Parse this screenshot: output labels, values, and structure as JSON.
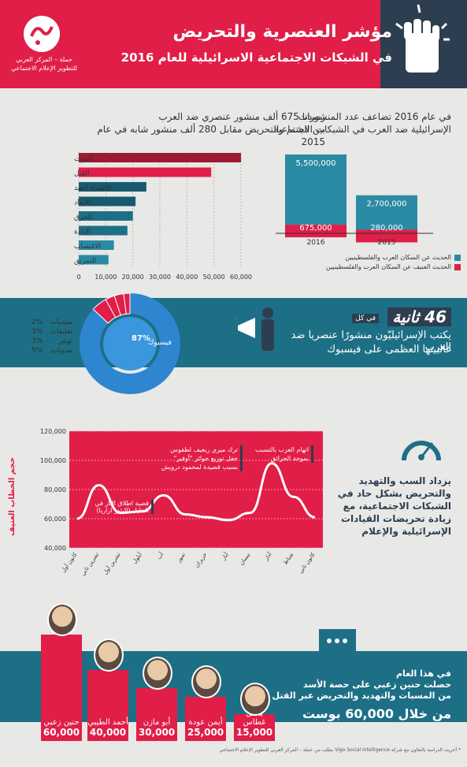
{
  "header": {
    "title": "مؤشر العنصرية والتحريض",
    "subtitle": "في الشبكات الاجتماعية الاسرائيلية للعام 2016",
    "logo_text": "حملة – المركز العربي\nللتطوير الإعلام الاجتماعي",
    "brand_color": "#e01e48",
    "dark_color": "#2c3e50",
    "teal_color": "#1d6f86"
  },
  "section1": {
    "right_text_1": "في عام 2016 تضاعف عدد المنشورات",
    "right_text_2": "الإسرائيلية ضد العرب في الشبكات الاجتماعية",
    "left_text_1": "رصدنا 675 ألف منشور عنصري ضد العرب",
    "left_text_2": "بين الشتم والتحريض مقابل 280 ألف منشور شابه في عام 2015",
    "legend_1": "الحديث عن السكان العرب والفلسطينيين",
    "legend_2": "الحديث العنيف عن السكان العرب والفلسطينيين"
  },
  "section2": {
    "prefix": "في كل",
    "seconds": "46 ثانية",
    "line1": "يكتب الإسرائيليّون منشورًا عنصريا ضد العرب",
    "line2": "غالبيتها العظمى على فيسبوك",
    "facebook_label": "فيسبوك",
    "facebook_pct": "87%",
    "platforms": [
      {
        "pct": "2%",
        "name": "منتديات"
      },
      {
        "pct": "3%",
        "name": "تعليقات"
      },
      {
        "pct": "3%",
        "name": "تويتر"
      },
      {
        "pct": "5%",
        "name": "مدونات"
      }
    ]
  },
  "section3": {
    "yaxis_title": "حجم الخطاب العنيف",
    "ann1": "قضية اطلاق النار في الخليل (اليئور ازاريا)",
    "ann2_1": "ترك ميري ريغيف لطقوس",
    "ann2_2": "حفل توزيع جوائز \"أوفير\"",
    "ann2_3": "بسبب قصيدة لمحمود درويش",
    "ann3_1": "اتهام العرب بالتسبب",
    "ann3_2": "بموجة الحرائق",
    "right_text": "يزداد السب والتهديد والتحريض بشكل حاد في الشبكات الاجتماعية، مع زيادة تحريضات القيادات الإسرائيلية والإعلام"
  },
  "section4": {
    "text1": "في هذا العام",
    "text2": "حصلت حنين زعبي على حصة الأسد",
    "text3": "من المسبات والتهديد والتحريض عبر القتل",
    "text4": "من خلال 60,000 بوست",
    "footnote": "* أجريت الدراسة بالتعاون مع شركة Vigo Social Intelligence بطلب من حملة – المركز العربي للتطوير الإعلام الاجتماعي",
    "politicians": [
      {
        "name": "حنين زعبي",
        "value": "60,000"
      },
      {
        "name": "أحمد الطيبي",
        "value": "40,000"
      },
      {
        "name": "أبو مازن",
        "value": "30,000"
      },
      {
        "name": "أيمن عودة",
        "value": "25,000"
      },
      {
        "name": "باسل غطاس",
        "value": "15,000"
      }
    ]
  },
  "chart_data": [
    {
      "type": "bar",
      "orientation": "horizontal",
      "categories": [
        "الموت",
        "القتل",
        "الاقصاء (بعيد",
        "الابعاد",
        "الحرق",
        "الإبادة",
        "الاغتصاب",
        "التمزيق"
      ],
      "values": [
        60000,
        49000,
        25000,
        21000,
        20000,
        18000,
        13000,
        11000
      ],
      "xlim": [
        0,
        60000
      ],
      "xticks": [
        "0",
        "10,000",
        "20,000",
        "30,000",
        "40,000",
        "50,000",
        "60,000"
      ],
      "colors": [
        "#9b1b32",
        "#e01e48",
        "#175a70",
        "#175a70",
        "#1d6f86",
        "#1d6f86",
        "#2a8aa4",
        "#2a8aa4"
      ]
    },
    {
      "type": "bar",
      "stacked": true,
      "categories": [
        "2016",
        "2015"
      ],
      "series": [
        {
          "name": "الحديث عن السكان العرب والفلسطينيين",
          "values": [
            5500000,
            2700000
          ],
          "labels": [
            "5,500,000",
            "2,700,000"
          ],
          "color": "#2a8aa4"
        },
        {
          "name": "الحديث العنيف عن السكان العرب والفلسطينيين",
          "values": [
            675000,
            280000
          ],
          "labels": [
            "675,000",
            "280,000"
          ],
          "color": "#e01e48"
        }
      ]
    },
    {
      "type": "pie",
      "labels": [
        "فيسبوك",
        "مدونات",
        "تويتر",
        "تعليقات",
        "منتديات"
      ],
      "values": [
        87,
        5,
        3,
        3,
        2
      ],
      "colors": [
        "#2e86d1",
        "#e01e48",
        "#e01e48",
        "#e01e48",
        "#e01e48"
      ]
    },
    {
      "type": "line",
      "x": [
        "كانون ثاني",
        "شباط",
        "آذار",
        "نيسان",
        "أيار",
        "حزيران",
        "تموز",
        "آب",
        "أيلول",
        "تشرين أول",
        "تشرين ثاني",
        "كانون أول"
      ],
      "y": [
        61000,
        75000,
        98000,
        64000,
        59000,
        61000,
        63000,
        76000,
        65000,
        64000,
        83000,
        60000
      ],
      "ylim": [
        40000,
        120000
      ],
      "yticks": [
        "40,000",
        "60,000",
        "80,000",
        "100,000",
        "120,000"
      ],
      "color": "#ffffff"
    }
  ]
}
